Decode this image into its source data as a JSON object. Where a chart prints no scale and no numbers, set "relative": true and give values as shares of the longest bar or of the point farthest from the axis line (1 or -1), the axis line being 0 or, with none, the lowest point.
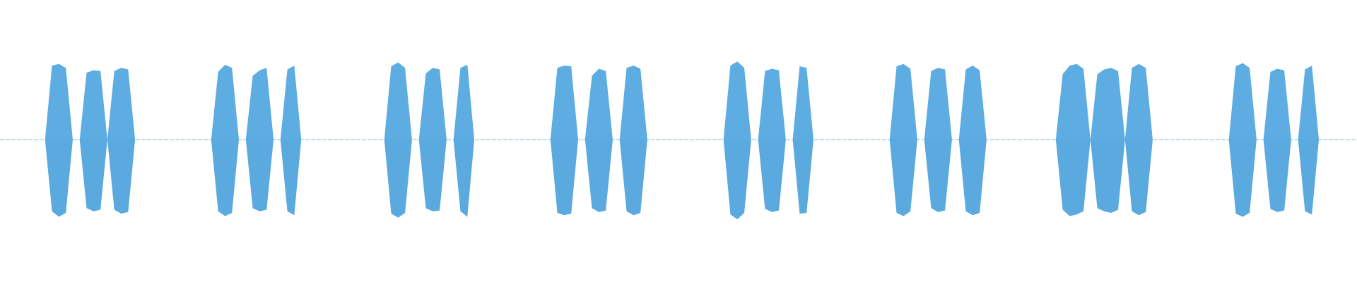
{
  "chart_data": {
    "type": "area",
    "relative": true,
    "categories": [
      null,
      null,
      null,
      null,
      null,
      null,
      null,
      null,
      null,
      null,
      null,
      null,
      null,
      null,
      null,
      null,
      null,
      null,
      null,
      null,
      null,
      null,
      null,
      null,
      null,
      null,
      null,
      null,
      null,
      null,
      null,
      null,
      null,
      null,
      null,
      null,
      null,
      null,
      null,
      null,
      null,
      null,
      null,
      null,
      null,
      null,
      null,
      null,
      null,
      null,
      null,
      null,
      null,
      null,
      null,
      null,
      null,
      null,
      null,
      null,
      null,
      null,
      null,
      null,
      null,
      null,
      null,
      null,
      null,
      null,
      null,
      null,
      null,
      null,
      null,
      null,
      null,
      null,
      null,
      null,
      null,
      null,
      null,
      null,
      null,
      null,
      null,
      null,
      null,
      null,
      null,
      null,
      null,
      null,
      null,
      null,
      null,
      null,
      null,
      null,
      null,
      null,
      null,
      null,
      null,
      null,
      null,
      null,
      null,
      null,
      null,
      null,
      null,
      null,
      null,
      null,
      null,
      null,
      null,
      null,
      null,
      null,
      null,
      null,
      null,
      null,
      null,
      null,
      null,
      null,
      null,
      null,
      null,
      null,
      null,
      null,
      null,
      null,
      null,
      null,
      null,
      null,
      null,
      null,
      null,
      null,
      null,
      null,
      null,
      null,
      null,
      null,
      null,
      null,
      null,
      null,
      null,
      null,
      null,
      null,
      null,
      null,
      null,
      null,
      null,
      null,
      null,
      null,
      null,
      null,
      null,
      null,
      null,
      null,
      null,
      null,
      null,
      null,
      null,
      null,
      null,
      null,
      null,
      null,
      null,
      null,
      null,
      null,
      null,
      null,
      null,
      null,
      null,
      null,
      null,
      null
    ],
    "series": [
      {
        "color": "#5dade2",
        "values": [
          0,
          0,
          0,
          0,
          0,
          0,
          0,
          0.93,
          0.95,
          0.9,
          0,
          0,
          0.84,
          0.87,
          0.86,
          0,
          0.86,
          0.9,
          0.88,
          0,
          0,
          0,
          0,
          0,
          0,
          0,
          0,
          0,
          0,
          0,
          0,
          0.85,
          0.94,
          0.9,
          0,
          0,
          0.8,
          0.87,
          0.9,
          0,
          0,
          0.88,
          0.93,
          0,
          0,
          0,
          0,
          0,
          0,
          0,
          0,
          0,
          0,
          0,
          0,
          0,
          0.92,
          0.97,
          0.9,
          0,
          0,
          0.83,
          0.9,
          0.88,
          0,
          0,
          0.9,
          0.94,
          0,
          0,
          0,
          0,
          0,
          0,
          0,
          0,
          0,
          0,
          0,
          0,
          0.9,
          0.93,
          0.92,
          0,
          0,
          0.8,
          0.89,
          0.86,
          0,
          0,
          0.9,
          0.93,
          0.89,
          0,
          0,
          0,
          0,
          0,
          0,
          0,
          0,
          0,
          0,
          0,
          0,
          0.93,
          0.98,
          0.9,
          0,
          0,
          0.86,
          0.89,
          0.87,
          0,
          0,
          0.92,
          0.9,
          0,
          0,
          0,
          0,
          0,
          0,
          0,
          0,
          0,
          0,
          0,
          0,
          0.92,
          0.95,
          0.89,
          0,
          0,
          0.86,
          0.9,
          0.88,
          0,
          0,
          0.88,
          0.93,
          0.87,
          0,
          0,
          0,
          0,
          0,
          0,
          0,
          0,
          0,
          0,
          0,
          0.82,
          0.93,
          0.95,
          0.89,
          0,
          0.82,
          0.88,
          0.9,
          0.86,
          0,
          0.9,
          0.95,
          0.9,
          0,
          0,
          0,
          0,
          0,
          0,
          0,
          0,
          0,
          0,
          0,
          0,
          0.92,
          0.96,
          0.9,
          0,
          0,
          0.85,
          0.89,
          0.87,
          0,
          0,
          0.88,
          0.93,
          0,
          0,
          0,
          0,
          0,
          0
        ]
      },
      {
        "color": "#5aa9df",
        "values": [
          0,
          0,
          0,
          0,
          0,
          0,
          0,
          -0.9,
          -0.97,
          -0.92,
          0,
          0,
          -0.86,
          -0.9,
          -0.88,
          0,
          -0.88,
          -0.93,
          -0.91,
          0,
          0,
          0,
          0,
          0,
          0,
          0,
          0,
          0,
          0,
          0,
          0,
          -0.9,
          -0.96,
          -0.92,
          0,
          0,
          -0.86,
          -0.9,
          -0.88,
          0,
          0,
          -0.9,
          -0.95,
          0,
          0,
          0,
          0,
          0,
          0,
          0,
          0,
          0,
          0,
          0,
          0,
          0,
          -0.93,
          -0.98,
          -0.92,
          0,
          0,
          -0.86,
          -0.9,
          -0.89,
          0,
          0,
          -0.9,
          -0.97,
          0,
          0,
          0,
          0,
          0,
          0,
          0,
          0,
          0,
          0,
          0,
          0,
          -0.92,
          -0.95,
          -0.93,
          0,
          0,
          -0.86,
          -0.91,
          -0.89,
          0,
          0,
          -0.9,
          -0.95,
          -0.92,
          0,
          0,
          0,
          0,
          0,
          0,
          0,
          0,
          0,
          0,
          0,
          0,
          -0.94,
          -1,
          -0.92,
          0,
          0,
          -0.87,
          -0.91,
          -0.89,
          0,
          0,
          -0.93,
          -0.92,
          0,
          0,
          0,
          0,
          0,
          0,
          0,
          0,
          0,
          0,
          0,
          0,
          -0.92,
          -0.96,
          -0.9,
          0,
          0,
          -0.86,
          -0.91,
          -0.89,
          0,
          0,
          -0.9,
          -0.95,
          -0.92,
          0,
          0,
          0,
          0,
          0,
          0,
          0,
          0,
          0,
          0,
          0,
          -0.88,
          -0.96,
          -0.94,
          -0.9,
          0,
          -0.86,
          -0.9,
          -0.92,
          -0.88,
          0,
          -0.9,
          -0.95,
          -0.91,
          0,
          0,
          0,
          0,
          0,
          0,
          0,
          0,
          0,
          0,
          0,
          0,
          -0.93,
          -0.97,
          -0.92,
          0,
          0,
          -0.87,
          -0.91,
          -0.89,
          0,
          0,
          -0.9,
          -0.94,
          0,
          0,
          0,
          0,
          0,
          0
        ]
      }
    ]
  }
}
